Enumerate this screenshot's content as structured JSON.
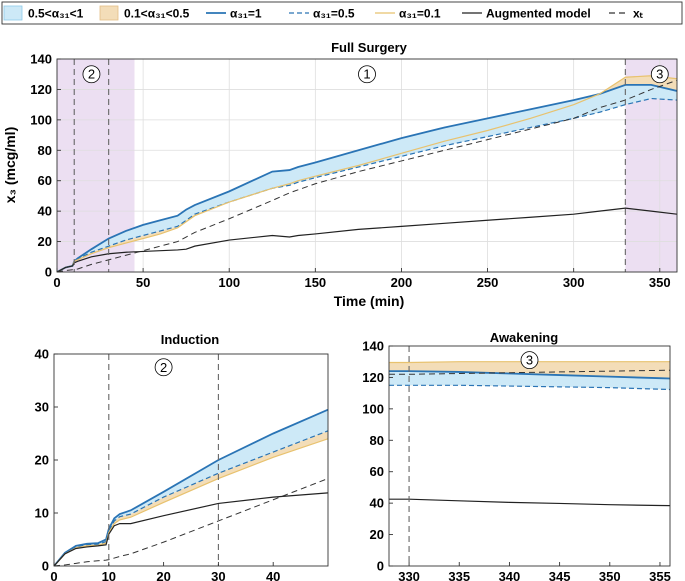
{
  "legend": {
    "items": [
      {
        "label": "0.5<α₃₁<1",
        "kind": "patch",
        "color": "#cde9f7",
        "edge": "#8fcbe9"
      },
      {
        "label": "0.1<α₃₁<0.5",
        "kind": "patch",
        "color": "#f3ddb8",
        "edge": "#e3bf86"
      },
      {
        "label": "α₃₁=1",
        "kind": "line",
        "color": "#2a74b5",
        "dash": ""
      },
      {
        "label": "α₃₁=0.5",
        "kind": "line",
        "color": "#2a74b5",
        "dash": "5,3"
      },
      {
        "label": "α₃₁=0.1",
        "kind": "line",
        "color": "#e8c26e",
        "dash": ""
      },
      {
        "label": "Augmented model",
        "kind": "line",
        "color": "#222222",
        "dash": ""
      },
      {
        "label": "xₜ",
        "kind": "line",
        "color": "#333333",
        "dash": "6,4"
      }
    ]
  },
  "colors": {
    "band_high": "#cde9f7",
    "band_low": "#f3ddb8",
    "alpha1": "#2a74b5",
    "alpha05": "#2a74b5",
    "alpha01": "#e8c26e",
    "augmented": "#222222",
    "xt": "#333333",
    "region": "#ecdff2",
    "phase_line": "#666666"
  },
  "chart_data": [
    {
      "type": "line",
      "title": "Full Surgery",
      "xlabel": "Time (min)",
      "ylabel": "x₃ (mcg/ml)",
      "xlim": [
        0,
        360
      ],
      "ylim": [
        0,
        140
      ],
      "xticks": [
        0,
        50,
        100,
        150,
        200,
        250,
        300,
        350
      ],
      "yticks": [
        0,
        20,
        40,
        60,
        80,
        100,
        120,
        140
      ],
      "grid": true,
      "shaded_regions": [
        [
          0,
          45
        ],
        [
          330,
          360
        ]
      ],
      "phase_lines": [
        10,
        30,
        330
      ],
      "phase_markers": [
        {
          "label": "2",
          "x": 20,
          "y": 130
        },
        {
          "label": "1",
          "x": 180,
          "y": 130
        },
        {
          "label": "3",
          "x": 350,
          "y": 130
        }
      ],
      "x": [
        0,
        5,
        9,
        10,
        12,
        20,
        30,
        40,
        50,
        60,
        70,
        75,
        80,
        100,
        125,
        135,
        140,
        150,
        175,
        200,
        225,
        250,
        275,
        300,
        315,
        330,
        345,
        360
      ],
      "series": [
        {
          "name": "α₃₁=1",
          "values": [
            0,
            3,
            4,
            7,
            9,
            15,
            22,
            27,
            31,
            34,
            37,
            41,
            44,
            53,
            66,
            67,
            69,
            72,
            80,
            88,
            95,
            101,
            107,
            113,
            117,
            123,
            123,
            119
          ]
        },
        {
          "name": "α₃₁=0.5",
          "values": [
            0,
            3,
            4,
            7,
            8.5,
            13,
            17,
            21,
            24,
            27,
            30,
            34,
            38,
            46,
            55,
            57,
            59,
            62,
            69,
            76,
            83,
            89,
            95,
            101,
            105,
            110,
            114,
            113
          ]
        },
        {
          "name": "α₃₁=0.1",
          "values": [
            0,
            3,
            4,
            7,
            8,
            12,
            16,
            19,
            22,
            25,
            29,
            33,
            37,
            46,
            55,
            58,
            60,
            63,
            70,
            78,
            86,
            93,
            101,
            110,
            117,
            128,
            129,
            127
          ]
        },
        {
          "name": "Augmented model",
          "values": [
            0,
            3,
            4,
            6,
            7,
            10,
            12,
            13,
            13.5,
            14,
            14.5,
            15,
            17,
            21,
            24,
            23,
            24,
            25,
            28,
            30,
            32,
            34,
            36,
            38,
            40,
            42,
            40,
            38
          ]
        },
        {
          "name": "xₜ",
          "values": [
            0,
            1,
            1.5,
            1.5,
            2,
            5,
            8,
            11,
            14,
            17,
            20,
            23,
            26,
            35,
            47,
            52,
            54,
            58,
            66,
            73,
            80,
            87,
            94,
            101,
            108,
            113,
            120,
            126
          ]
        }
      ]
    },
    {
      "type": "line",
      "title": "Induction",
      "xlabel": "",
      "ylabel": "",
      "xlim": [
        0,
        50
      ],
      "ylim": [
        0,
        40
      ],
      "xticks": [
        0,
        10,
        20,
        30,
        40
      ],
      "yticks": [
        0,
        10,
        20,
        30,
        40
      ],
      "grid": false,
      "phase_lines": [
        10,
        30
      ],
      "phase_markers": [
        {
          "label": "2",
          "x": 20,
          "y": 37.5
        }
      ],
      "x": [
        0,
        2,
        4,
        6,
        8,
        9.5,
        10,
        11,
        12,
        14,
        20,
        30,
        40,
        50
      ],
      "series": [
        {
          "name": "α₃₁=1",
          "values": [
            0,
            2.5,
            3.8,
            4.2,
            4.3,
            5,
            7,
            9,
            9.8,
            10.5,
            14,
            20,
            25,
            29.5
          ]
        },
        {
          "name": "α₃₁=0.5",
          "values": [
            0,
            2.4,
            3.6,
            4,
            4.1,
            4.6,
            6.5,
            8.5,
            9.3,
            9.8,
            13,
            17.5,
            21.5,
            25.5
          ]
        },
        {
          "name": "α₃₁=0.1",
          "values": [
            0,
            2.3,
            3.4,
            3.8,
            3.9,
            4.3,
            6.3,
            8,
            8.7,
            9.2,
            12,
            16.5,
            20.5,
            24
          ]
        },
        {
          "name": "Augmented model",
          "values": [
            0,
            2.3,
            3.3,
            3.6,
            3.8,
            4,
            6,
            7.6,
            8,
            8,
            9.5,
            11.8,
            13,
            13.8
          ]
        },
        {
          "name": "xₜ",
          "values": [
            0,
            0.2,
            0.5,
            0.8,
            1,
            1.1,
            1.2,
            1.5,
            1.8,
            2.3,
            4.5,
            8.5,
            12.5,
            16.5
          ]
        }
      ]
    },
    {
      "type": "line",
      "title": "Awakening",
      "xlabel": "",
      "ylabel": "",
      "xlim": [
        328,
        356
      ],
      "ylim": [
        0,
        140
      ],
      "xticks": [
        330,
        335,
        340,
        345,
        350,
        355
      ],
      "yticks": [
        0,
        20,
        40,
        60,
        80,
        100,
        120,
        140
      ],
      "grid": false,
      "phase_lines": [
        330
      ],
      "phase_markers": [
        {
          "label": "3",
          "x": 342,
          "y": 131
        }
      ],
      "x": [
        328,
        330,
        335,
        340,
        345,
        350,
        355,
        356
      ],
      "series": [
        {
          "name": "α₃₁=1",
          "values": [
            124,
            124,
            123.5,
            122.5,
            121.5,
            120.5,
            119.5,
            119.3
          ]
        },
        {
          "name": "α₃₁=0.5",
          "values": [
            115,
            115,
            115,
            114.5,
            114,
            113.5,
            112.5,
            112.3
          ]
        },
        {
          "name": "α₃₁=0.1",
          "values": [
            129.5,
            129.5,
            130,
            130,
            130,
            130,
            130,
            130
          ]
        },
        {
          "name": "Augmented model",
          "values": [
            42.5,
            42.5,
            41.5,
            40.5,
            39.8,
            39,
            38.5,
            38.4
          ]
        },
        {
          "name": "xₜ",
          "values": [
            122,
            122,
            122.5,
            123,
            123.5,
            124,
            124.5,
            124.6
          ]
        }
      ]
    }
  ]
}
